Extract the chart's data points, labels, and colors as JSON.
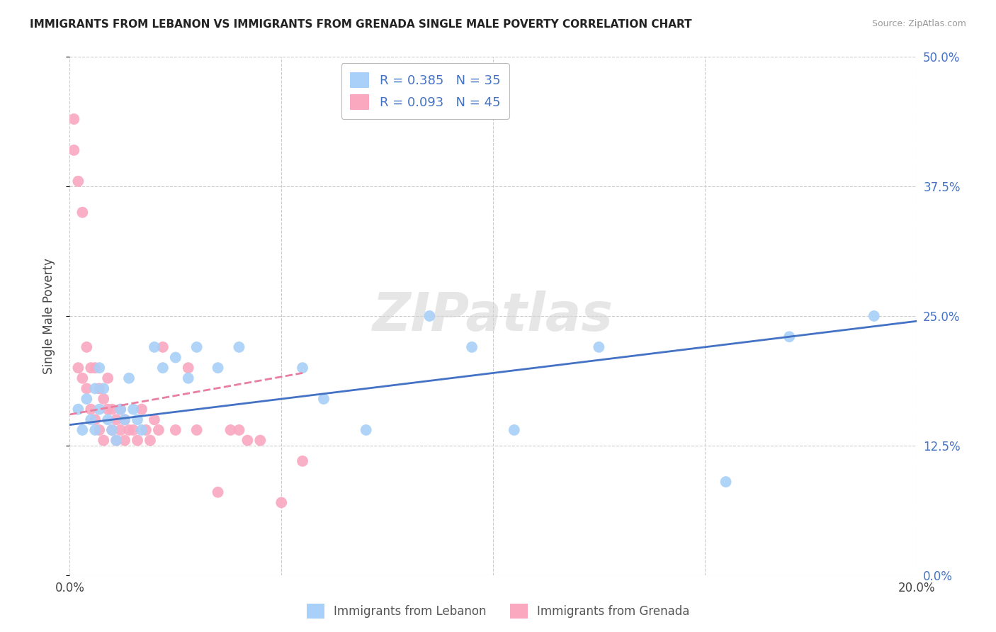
{
  "title": "IMMIGRANTS FROM LEBANON VS IMMIGRANTS FROM GRENADA SINGLE MALE POVERTY CORRELATION CHART",
  "source": "Source: ZipAtlas.com",
  "ylabel": "Single Male Poverty",
  "xlim": [
    0.0,
    0.2
  ],
  "ylim": [
    0.0,
    0.5
  ],
  "xticks": [
    0.0,
    0.05,
    0.1,
    0.15,
    0.2
  ],
  "xtick_labels": [
    "0.0%",
    "",
    "",
    "",
    "20.0%"
  ],
  "ytick_labels_right": [
    "0.0%",
    "12.5%",
    "25.0%",
    "37.5%",
    "50.0%"
  ],
  "yticks": [
    0.0,
    0.125,
    0.25,
    0.375,
    0.5
  ],
  "lebanon_color": "#A8D0F8",
  "grenada_color": "#F9A8C0",
  "lebanon_line_color": "#4472C4",
  "grenada_line_color": "#E87FA0",
  "lebanon_R": 0.385,
  "lebanon_N": 35,
  "grenada_R": 0.093,
  "grenada_N": 45,
  "legend_label_lebanon": "Immigrants from Lebanon",
  "legend_label_grenada": "Immigrants from Grenada",
  "watermark": "ZIPatlas",
  "background_color": "#ffffff",
  "grid_color": "#cccccc",
  "lebanon_x": [
    0.002,
    0.003,
    0.004,
    0.005,
    0.006,
    0.006,
    0.007,
    0.007,
    0.008,
    0.009,
    0.01,
    0.011,
    0.012,
    0.013,
    0.014,
    0.015,
    0.016,
    0.017,
    0.02,
    0.022,
    0.025,
    0.028,
    0.03,
    0.035,
    0.04,
    0.055,
    0.06,
    0.07,
    0.085,
    0.095,
    0.105,
    0.125,
    0.155,
    0.17,
    0.19
  ],
  "lebanon_y": [
    0.16,
    0.14,
    0.17,
    0.15,
    0.14,
    0.18,
    0.16,
    0.2,
    0.18,
    0.15,
    0.14,
    0.13,
    0.16,
    0.15,
    0.19,
    0.16,
    0.15,
    0.14,
    0.22,
    0.2,
    0.21,
    0.19,
    0.22,
    0.2,
    0.22,
    0.2,
    0.17,
    0.14,
    0.25,
    0.22,
    0.14,
    0.22,
    0.09,
    0.23,
    0.25
  ],
  "grenada_x": [
    0.001,
    0.001,
    0.002,
    0.002,
    0.003,
    0.003,
    0.004,
    0.004,
    0.005,
    0.005,
    0.006,
    0.006,
    0.007,
    0.007,
    0.008,
    0.008,
    0.009,
    0.009,
    0.01,
    0.01,
    0.011,
    0.011,
    0.012,
    0.012,
    0.013,
    0.013,
    0.014,
    0.015,
    0.016,
    0.017,
    0.018,
    0.019,
    0.02,
    0.021,
    0.022,
    0.025,
    0.028,
    0.03,
    0.035,
    0.038,
    0.04,
    0.042,
    0.045,
    0.05,
    0.055
  ],
  "grenada_y": [
    0.44,
    0.41,
    0.38,
    0.2,
    0.35,
    0.19,
    0.22,
    0.18,
    0.2,
    0.16,
    0.2,
    0.15,
    0.18,
    0.14,
    0.17,
    0.13,
    0.16,
    0.19,
    0.16,
    0.14,
    0.15,
    0.13,
    0.14,
    0.16,
    0.15,
    0.13,
    0.14,
    0.14,
    0.13,
    0.16,
    0.14,
    0.13,
    0.15,
    0.14,
    0.22,
    0.14,
    0.2,
    0.14,
    0.08,
    0.14,
    0.14,
    0.13,
    0.13,
    0.07,
    0.11
  ],
  "lebanon_line_x": [
    0.0,
    0.2
  ],
  "lebanon_line_y": [
    0.145,
    0.245
  ],
  "grenada_line_x": [
    0.0,
    0.055
  ],
  "grenada_line_y": [
    0.155,
    0.195
  ]
}
